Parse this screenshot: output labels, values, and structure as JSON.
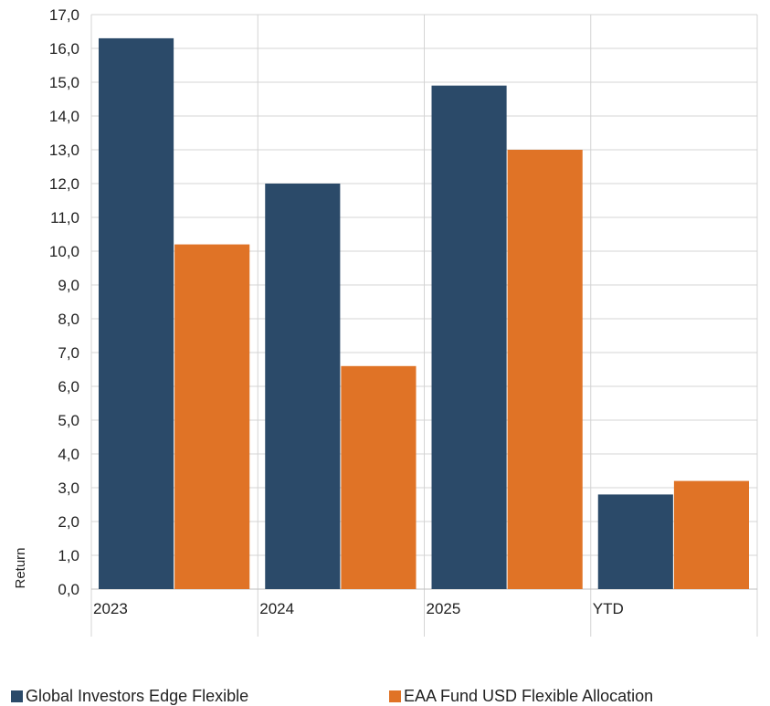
{
  "chart_data": {
    "type": "bar",
    "categories": [
      "2023",
      "2024",
      "2025",
      "YTD"
    ],
    "series": [
      {
        "name": "Global Investors Edge Flexible",
        "color": "#2b4a69",
        "values": [
          16.3,
          12.0,
          14.9,
          2.8
        ]
      },
      {
        "name": "EAA Fund USD Flexible Allocation",
        "color": "#e07326",
        "values": [
          10.2,
          6.6,
          13.0,
          3.2
        ]
      }
    ],
    "title": "",
    "xlabel": "",
    "ylabel": "Return",
    "ylim": [
      0,
      17
    ],
    "yticks": [
      "0,0",
      "1,0",
      "2,0",
      "3,0",
      "4,0",
      "5,0",
      "6,0",
      "7,0",
      "8,0",
      "9,0",
      "10,0",
      "11,0",
      "12,0",
      "13,0",
      "14,0",
      "15,0",
      "16,0",
      "17,0"
    ],
    "grid": true,
    "legend_position": "bottom"
  }
}
